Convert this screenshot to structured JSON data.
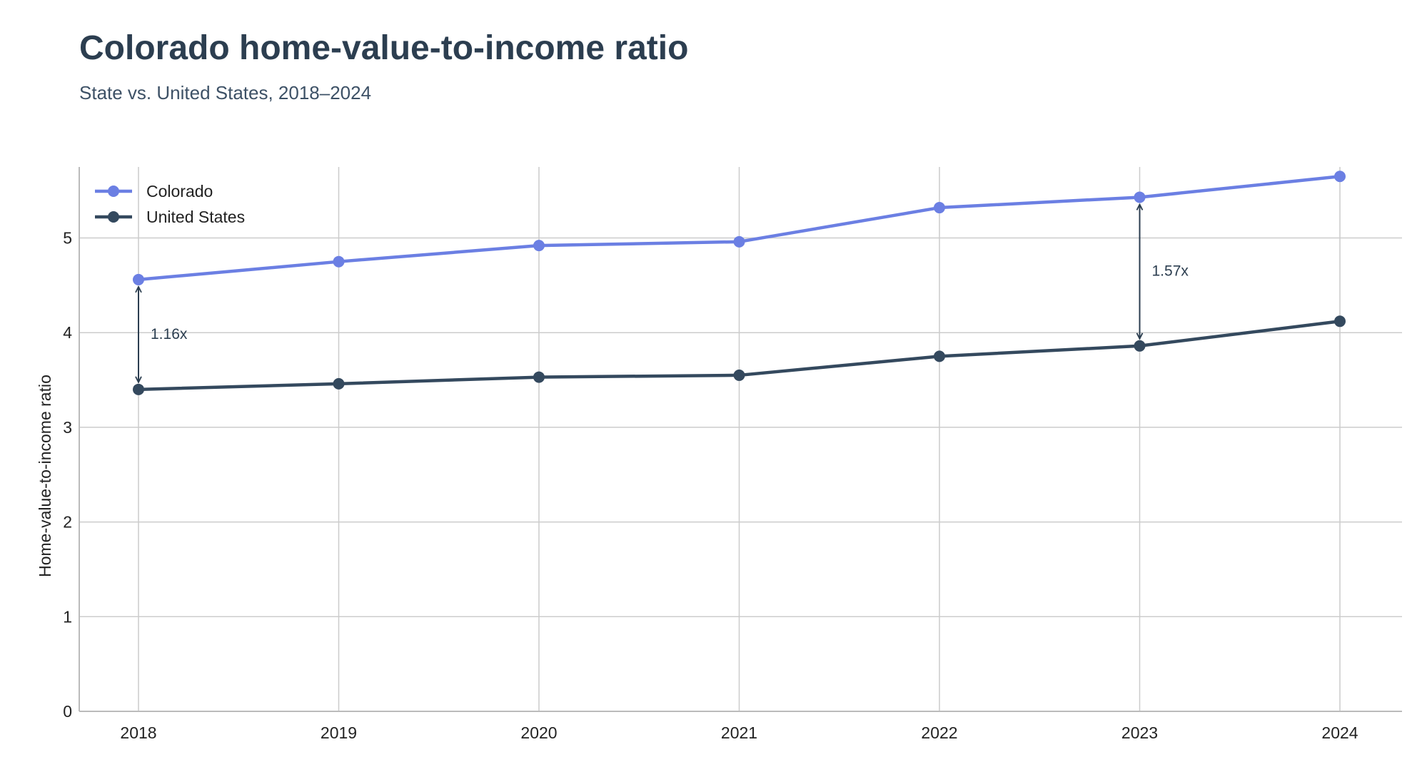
{
  "chart_data": {
    "type": "line",
    "title": "Colorado home-value-to-income ratio",
    "subtitle": "State vs. United States, 2018–2024",
    "xlabel": "",
    "ylabel": "Home-value-to-income ratio",
    "x": [
      "2018",
      "2019",
      "2020",
      "2021",
      "2022",
      "2023",
      "2024"
    ],
    "ylim": [
      0,
      5.75
    ],
    "yticks": [
      "0",
      "1",
      "2",
      "3",
      "4",
      "5"
    ],
    "grid": true,
    "legend_position": "top-left",
    "series": [
      {
        "name": "Colorado",
        "color": "#6b7fe3",
        "values": [
          4.56,
          4.75,
          4.92,
          4.96,
          5.32,
          5.43,
          5.65
        ]
      },
      {
        "name": "United States",
        "color": "#34495e",
        "values": [
          3.4,
          3.46,
          3.53,
          3.55,
          3.75,
          3.86,
          4.12
        ]
      }
    ],
    "annotations": [
      {
        "x": "2018",
        "text": "1.16x"
      },
      {
        "x": "2023",
        "text": "1.57x"
      }
    ]
  }
}
